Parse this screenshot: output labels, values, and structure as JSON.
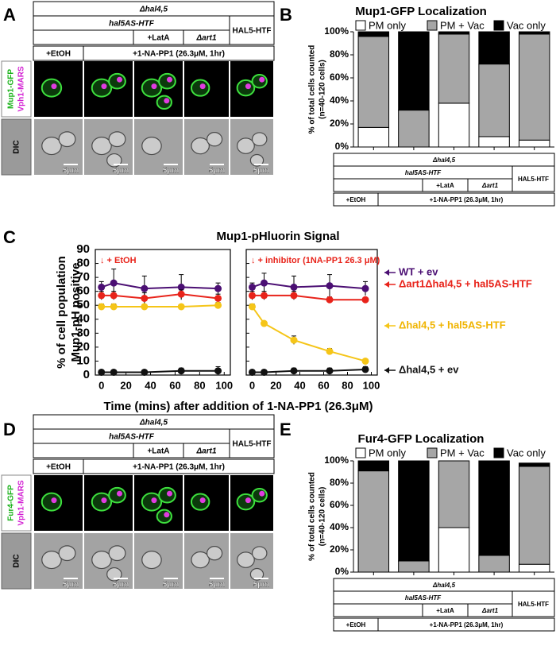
{
  "panel_labels": [
    "A",
    "B",
    "C",
    "D",
    "E"
  ],
  "conditions": {
    "strain": "Δhal4,5",
    "construct": "hal5AS-HTF",
    "wt_construct": "HAL5-HTF",
    "latA": "+LatA",
    "art1": "Δart1",
    "etoh": "+EtOH",
    "inhibitor": "+1-NA-PP1 (26.3μM, 1hr)"
  },
  "microscopy": [
    {
      "channels": [
        "Mup1-GFP",
        "Vph1-MARS"
      ],
      "dic": "DIC"
    },
    {
      "channels": [
        "Fur4-GFP",
        "Vph1-MARS"
      ],
      "dic": "DIC"
    }
  ],
  "scale_bar": "5μm",
  "chart_data": [
    {
      "type": "stacked_bar",
      "title": "Mup1-GFP Localization",
      "ylabel": [
        "% of total cells counted",
        "(n=40-120 cells)"
      ],
      "categories": [
        null,
        null,
        null,
        null,
        null
      ],
      "ylim": [
        0,
        100
      ],
      "yticks": [
        {
          "value": 0,
          "label": "0%"
        },
        {
          "value": 20,
          "label": "20%"
        },
        {
          "value": 40,
          "label": "40%"
        },
        {
          "value": 60,
          "label": "60%"
        },
        {
          "value": 80,
          "label": "80%"
        },
        {
          "value": 100,
          "label": "100%"
        }
      ],
      "legend": "top",
      "series": [
        {
          "name": "PM only",
          "color": "#ffffff",
          "values": [
            17,
            0,
            38,
            9,
            6
          ]
        },
        {
          "name": "PM + Vac",
          "color": "#a6a6a6",
          "values": [
            79,
            32,
            60,
            63,
            92
          ]
        },
        {
          "name": "Vac only",
          "color": "#000000",
          "values": [
            4,
            68,
            2,
            28,
            2
          ]
        }
      ]
    },
    {
      "type": "line",
      "title": "Mup1-pHluorin Signal",
      "ylabel": [
        "% of cell population",
        "Mup1-pH positive"
      ],
      "xlabel": "Time (mins) after addition of 1-NA-PP1 (26.3μM)",
      "x": [
        0,
        10,
        35,
        65,
        95
      ],
      "xlim": [
        -5,
        105
      ],
      "xticks": [
        0,
        20,
        40,
        60,
        80,
        100
      ],
      "ylim": [
        0,
        90
      ],
      "yticks": [
        0,
        10,
        20,
        30,
        40,
        50,
        60,
        70,
        80,
        90
      ],
      "series": [
        {
          "name": "WT + ev",
          "color": "#4b0f73"
        },
        {
          "name": "Δart1Δhal4,5 + hal5AS-HTF",
          "color": "#e8231a"
        },
        {
          "name": "Δhal4,5 + hal5AS-HTF",
          "color": "#f5c518"
        },
        {
          "name": "Δhal4,5 + ev",
          "color": "#111111"
        }
      ],
      "panels": [
        {
          "annotation": "↓ + EtOH",
          "series": [
            {
              "values": [
                63,
                66,
                62,
                63,
                62
              ],
              "errors": [
                4,
                10,
                9,
                9,
                4
              ]
            },
            {
              "values": [
                57,
                57,
                55,
                58,
                55
              ],
              "errors": [
                3,
                3,
                4,
                3,
                3
              ]
            },
            {
              "values": [
                49,
                49,
                49,
                49,
                50
              ],
              "errors": [
                2,
                2,
                1,
                1,
                2
              ]
            },
            {
              "values": [
                2,
                2,
                2,
                3,
                3
              ],
              "errors": [
                1,
                1,
                1,
                2,
                3
              ]
            }
          ]
        },
        {
          "annotation": "↓ + inhibitor (1NA-PP1 26.3 μM)",
          "series": [
            {
              "values": [
                63,
                66,
                63,
                64,
                62
              ],
              "errors": [
                3,
                7,
                8,
                8,
                5
              ]
            },
            {
              "values": [
                57,
                57,
                57,
                54,
                54
              ],
              "errors": [
                3,
                3,
                3,
                2,
                1
              ]
            },
            {
              "values": [
                49,
                37,
                25,
                17,
                10
              ],
              "errors": [
                2,
                1,
                3,
                2,
                1
              ]
            },
            {
              "values": [
                2,
                2,
                3,
                3,
                4
              ],
              "errors": [
                1,
                1,
                2,
                2,
                2
              ]
            }
          ]
        }
      ]
    },
    {
      "type": "stacked_bar",
      "title": "Fur4-GFP Localization",
      "ylabel": [
        "% of total cells counted",
        "(n=40-120 cells)"
      ],
      "categories": [
        null,
        null,
        null,
        null,
        null
      ],
      "ylim": [
        0,
        100
      ],
      "yticks": [
        {
          "value": 0,
          "label": "0%"
        },
        {
          "value": 20,
          "label": "20%"
        },
        {
          "value": 40,
          "label": "40%"
        },
        {
          "value": 60,
          "label": "60%"
        },
        {
          "value": 80,
          "label": "80%"
        },
        {
          "value": 100,
          "label": "100%"
        }
      ],
      "legend": "top",
      "series": [
        {
          "name": "PM only",
          "color": "#ffffff",
          "values": [
            0,
            0,
            40,
            0,
            7
          ]
        },
        {
          "name": "PM + Vac",
          "color": "#a6a6a6",
          "values": [
            91,
            10,
            60,
            15,
            88
          ]
        },
        {
          "name": "Vac only",
          "color": "#000000",
          "values": [
            9,
            90,
            0,
            85,
            3
          ]
        }
      ]
    }
  ]
}
